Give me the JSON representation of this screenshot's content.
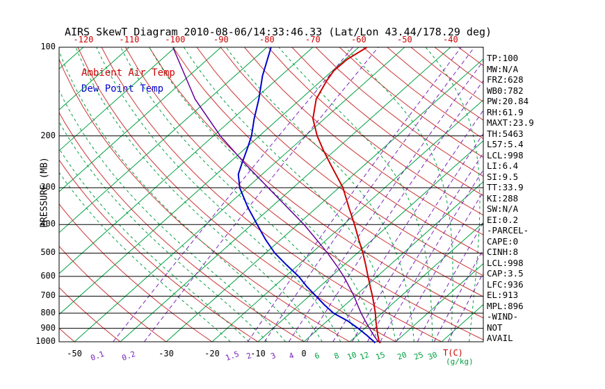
{
  "chart_data": {
    "type": "skewt-log-p",
    "title": "AIRS SkewT Diagram 2010-08-06/14:33:46.33 (Lat/Lon 43.44/178.29 deg)",
    "axes": {
      "pressure_label": "PRESSURE (MB)",
      "pressure_ticks": [
        100,
        200,
        300,
        400,
        500,
        600,
        700,
        800,
        900,
        1000
      ],
      "top_temp_ticks_c": [
        -120,
        -110,
        -100,
        -90,
        -80,
        -70,
        -60,
        -50,
        -40
      ],
      "bottom_temp_ticks_c": [
        -50,
        -30,
        -20,
        -10,
        0
      ],
      "temp_unit_label": "T(C)",
      "mixing_unit_label": "(g/kg)",
      "mixing_ratio_ticks": [
        {
          "value": 0.1,
          "color": "#7722BB"
        },
        {
          "value": 0.2,
          "color": "#7722BB"
        },
        {
          "value": 1.5,
          "color": "#7722BB"
        },
        {
          "value": 2,
          "color": "#7722BB"
        },
        {
          "value": 3,
          "color": "#7722BB"
        },
        {
          "value": 4,
          "color": "#7722BB"
        },
        {
          "value": 6,
          "color": "#00A040"
        },
        {
          "value": 8,
          "color": "#00A040"
        },
        {
          "value": 10,
          "color": "#00A040"
        },
        {
          "value": 12,
          "color": "#00A040"
        },
        {
          "value": 15,
          "color": "#00A040"
        },
        {
          "value": 20,
          "color": "#00A040"
        },
        {
          "value": 25,
          "color": "#00A040"
        },
        {
          "value": 30,
          "color": "#00A040"
        }
      ]
    },
    "grid": {
      "pressure_range_mb": [
        100,
        1000
      ],
      "isotherms_c": {
        "min": -130,
        "max": 40,
        "step": 10
      },
      "dry_adiabats_t1000_c": {
        "min": -50,
        "max": 200,
        "step": 10
      },
      "moist_adiabats_t1000_c": {
        "min": -16,
        "max": 40,
        "step": 4
      },
      "colors": {
        "isotherm": "#00A040",
        "dry_adiabat": "#CC3333",
        "moist_adiabat": "#00A040",
        "mixing_ratio": "#7722BB",
        "frame": "#000000",
        "top_tick_text": "#CC0000"
      }
    },
    "series": [
      {
        "name": "Ambient Air Temp",
        "color": "#CC0000",
        "width": 2,
        "points": [
          [
            1010,
            17.0
          ],
          [
            1000,
            16.4
          ],
          [
            950,
            14.5
          ],
          [
            900,
            12.6
          ],
          [
            850,
            10.6
          ],
          [
            800,
            8.6
          ],
          [
            750,
            6.3
          ],
          [
            700,
            3.8
          ],
          [
            650,
            1.0
          ],
          [
            600,
            -2.0
          ],
          [
            550,
            -5.2
          ],
          [
            500,
            -8.8
          ],
          [
            450,
            -13.0
          ],
          [
            400,
            -17.6
          ],
          [
            350,
            -23.0
          ],
          [
            300,
            -29.1
          ],
          [
            250,
            -37.5
          ],
          [
            225,
            -42.3
          ],
          [
            200,
            -47.4
          ],
          [
            175,
            -52.5
          ],
          [
            150,
            -56.6
          ],
          [
            130,
            -58.8
          ],
          [
            120,
            -59.7
          ],
          [
            110,
            -59.6
          ],
          [
            100,
            -58.2
          ]
        ]
      },
      {
        "name": "Dew Point Temp",
        "color": "#0000CC",
        "width": 2,
        "points": [
          [
            1010,
            15.8
          ],
          [
            1000,
            15.3
          ],
          [
            950,
            12.1
          ],
          [
            900,
            8.5
          ],
          [
            850,
            4.5
          ],
          [
            800,
            -0.5
          ],
          [
            750,
            -4.5
          ],
          [
            700,
            -8.5
          ],
          [
            650,
            -12.8
          ],
          [
            600,
            -17.1
          ],
          [
            550,
            -22.4
          ],
          [
            500,
            -28.0
          ],
          [
            450,
            -33.3
          ],
          [
            400,
            -38.8
          ],
          [
            350,
            -45.0
          ],
          [
            300,
            -51.6
          ],
          [
            270,
            -55.2
          ],
          [
            250,
            -56.9
          ],
          [
            220,
            -59.6
          ],
          [
            200,
            -61.7
          ],
          [
            175,
            -65.3
          ],
          [
            150,
            -69.1
          ],
          [
            125,
            -74.0
          ],
          [
            100,
            -79.1
          ]
        ]
      },
      {
        "name": "Parcel",
        "color": "#660099",
        "width": 1.5,
        "points": [
          [
            1000,
            16.2
          ],
          [
            950,
            13.6
          ],
          [
            900,
            11.0
          ],
          [
            850,
            8.3
          ],
          [
            800,
            5.5
          ],
          [
            750,
            2.7
          ],
          [
            700,
            -0.2
          ],
          [
            650,
            -3.6
          ],
          [
            600,
            -7.3
          ],
          [
            550,
            -11.6
          ],
          [
            500,
            -16.5
          ],
          [
            450,
            -22.2
          ],
          [
            400,
            -28.6
          ],
          [
            350,
            -36.4
          ],
          [
            300,
            -45.4
          ],
          [
            250,
            -56.0
          ],
          [
            200,
            -68.5
          ],
          [
            150,
            -83.0
          ],
          [
            100,
            -100.5
          ]
        ]
      }
    ],
    "stats_panel": [
      "TP:100",
      "MW:N/A",
      "FRZ:628",
      "WB0:782",
      "PW:20.84",
      "RH:61.9",
      "MAXT:23.9",
      "TH:5463",
      "L57:5.4",
      "LCL:998",
      "LI:6.4",
      "SI:9.5",
      "TT:33.9",
      "KI:288",
      "SW:N/A",
      "EI:0.2",
      "-PARCEL-",
      "CAPE:0",
      "CINH:8",
      "LCL:998",
      "CAP:3.5",
      "LFC:936",
      "EL:913",
      "MPL:896",
      "-WIND-",
      "NOT",
      "AVAIL"
    ]
  }
}
